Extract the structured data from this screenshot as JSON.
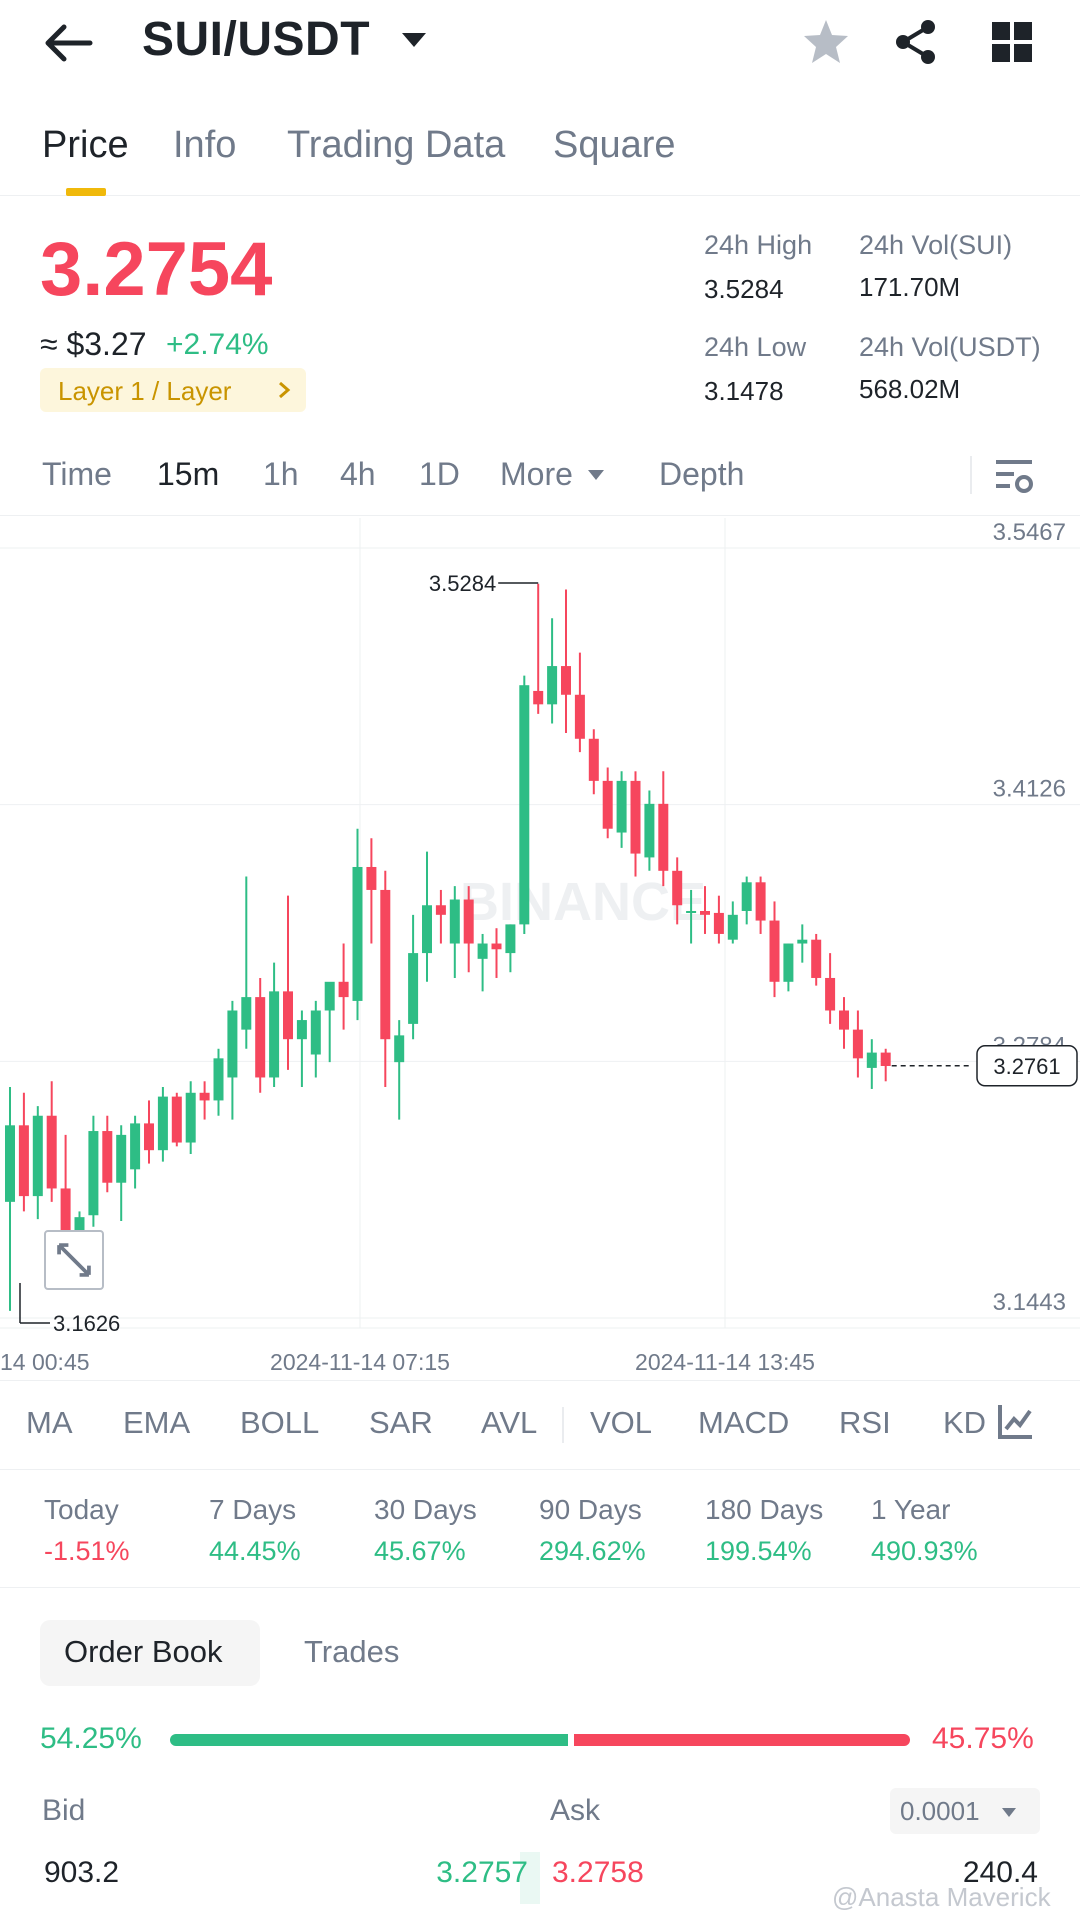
{
  "header": {
    "pair": "SUI/USDT",
    "icons": [
      "back-arrow-icon",
      "caret-down-icon",
      "star-icon",
      "share-icon",
      "grid-icon"
    ]
  },
  "tabs": [
    "Price",
    "Info",
    "Trading Data",
    "Square"
  ],
  "ticker": {
    "last_price": "3.2754",
    "usd_price": "≈ $3.27",
    "change": "+2.74%",
    "tag": "Layer 1 / Layer",
    "high_label": "24h High",
    "high_value": "3.5284",
    "low_label": "24h Low",
    "low_value": "3.1478",
    "vol_base_label": "24h Vol(SUI)",
    "vol_base_value": "171.70M",
    "vol_quote_label": "24h Vol(USDT)",
    "vol_quote_value": "568.02M"
  },
  "intervals": [
    "Time",
    "15m",
    "1h",
    "4h",
    "1D",
    "More",
    "Depth"
  ],
  "chart": {
    "y_ticks": [
      "3.5467",
      "3.4126",
      "3.2784",
      "3.1443"
    ],
    "x_ticks": [
      "14 00:45",
      "2024-11-14 07:15",
      "2024-11-14 13:45"
    ],
    "high_marker": "3.5284",
    "low_marker": "3.1626",
    "current_price": "3.2761",
    "watermark": "BINANCE"
  },
  "chart_data": {
    "type": "candlestick",
    "interval": "15m",
    "ylim": [
      3.1443,
      3.5467
    ],
    "y_ticks": [
      3.5467,
      3.4126,
      3.2784,
      3.1443
    ],
    "high": 3.5284,
    "low": 3.1626,
    "last": 3.2761,
    "candles": [
      {
        "o": 3.205,
        "h": 3.265,
        "l": 3.148,
        "c": 3.245
      },
      {
        "o": 3.245,
        "h": 3.262,
        "l": 3.2,
        "c": 3.208
      },
      {
        "o": 3.208,
        "h": 3.255,
        "l": 3.196,
        "c": 3.25
      },
      {
        "o": 3.25,
        "h": 3.268,
        "l": 3.205,
        "c": 3.212
      },
      {
        "o": 3.212,
        "h": 3.24,
        "l": 3.175,
        "c": 3.188
      },
      {
        "o": 3.18,
        "h": 3.2,
        "l": 3.162,
        "c": 3.197
      },
      {
        "o": 3.198,
        "h": 3.25,
        "l": 3.192,
        "c": 3.242
      },
      {
        "o": 3.242,
        "h": 3.25,
        "l": 3.21,
        "c": 3.215
      },
      {
        "o": 3.215,
        "h": 3.245,
        "l": 3.195,
        "c": 3.24
      },
      {
        "o": 3.222,
        "h": 3.25,
        "l": 3.212,
        "c": 3.246
      },
      {
        "o": 3.246,
        "h": 3.258,
        "l": 3.225,
        "c": 3.232
      },
      {
        "o": 3.232,
        "h": 3.265,
        "l": 3.226,
        "c": 3.26
      },
      {
        "o": 3.26,
        "h": 3.262,
        "l": 3.234,
        "c": 3.236
      },
      {
        "o": 3.236,
        "h": 3.268,
        "l": 3.23,
        "c": 3.262
      },
      {
        "o": 3.262,
        "h": 3.268,
        "l": 3.248,
        "c": 3.258
      },
      {
        "o": 3.258,
        "h": 3.285,
        "l": 3.25,
        "c": 3.28
      },
      {
        "o": 3.27,
        "h": 3.31,
        "l": 3.248,
        "c": 3.305
      },
      {
        "o": 3.295,
        "h": 3.375,
        "l": 3.285,
        "c": 3.312
      },
      {
        "o": 3.312,
        "h": 3.322,
        "l": 3.262,
        "c": 3.27
      },
      {
        "o": 3.27,
        "h": 3.33,
        "l": 3.265,
        "c": 3.315
      },
      {
        "o": 3.315,
        "h": 3.365,
        "l": 3.274,
        "c": 3.29
      },
      {
        "o": 3.29,
        "h": 3.305,
        "l": 3.265,
        "c": 3.3
      },
      {
        "o": 3.282,
        "h": 3.31,
        "l": 3.27,
        "c": 3.305
      },
      {
        "o": 3.305,
        "h": 3.318,
        "l": 3.278,
        "c": 3.32
      },
      {
        "o": 3.32,
        "h": 3.34,
        "l": 3.295,
        "c": 3.312
      },
      {
        "o": 3.31,
        "h": 3.4,
        "l": 3.3,
        "c": 3.38
      },
      {
        "o": 3.38,
        "h": 3.395,
        "l": 3.34,
        "c": 3.368
      },
      {
        "o": 3.368,
        "h": 3.378,
        "l": 3.265,
        "c": 3.29
      },
      {
        "o": 3.278,
        "h": 3.3,
        "l": 3.248,
        "c": 3.292
      },
      {
        "o": 3.298,
        "h": 3.355,
        "l": 3.29,
        "c": 3.335
      },
      {
        "o": 3.335,
        "h": 3.388,
        "l": 3.32,
        "c": 3.36
      },
      {
        "o": 3.36,
        "h": 3.368,
        "l": 3.34,
        "c": 3.355
      },
      {
        "o": 3.34,
        "h": 3.37,
        "l": 3.322,
        "c": 3.363
      },
      {
        "o": 3.363,
        "h": 3.37,
        "l": 3.325,
        "c": 3.34
      },
      {
        "o": 3.332,
        "h": 3.345,
        "l": 3.315,
        "c": 3.34
      },
      {
        "o": 3.34,
        "h": 3.348,
        "l": 3.322,
        "c": 3.337
      },
      {
        "o": 3.335,
        "h": 3.35,
        "l": 3.325,
        "c": 3.35
      },
      {
        "o": 3.35,
        "h": 3.48,
        "l": 3.345,
        "c": 3.475
      },
      {
        "o": 3.472,
        "h": 3.528,
        "l": 3.46,
        "c": 3.465
      },
      {
        "o": 3.465,
        "h": 3.51,
        "l": 3.455,
        "c": 3.485
      },
      {
        "o": 3.485,
        "h": 3.525,
        "l": 3.45,
        "c": 3.47
      },
      {
        "o": 3.47,
        "h": 3.492,
        "l": 3.44,
        "c": 3.447
      },
      {
        "o": 3.447,
        "h": 3.452,
        "l": 3.418,
        "c": 3.425
      },
      {
        "o": 3.425,
        "h": 3.432,
        "l": 3.395,
        "c": 3.4
      },
      {
        "o": 3.398,
        "h": 3.43,
        "l": 3.39,
        "c": 3.425
      },
      {
        "o": 3.425,
        "h": 3.43,
        "l": 3.375,
        "c": 3.387
      },
      {
        "o": 3.385,
        "h": 3.42,
        "l": 3.378,
        "c": 3.413
      },
      {
        "o": 3.413,
        "h": 3.43,
        "l": 3.37,
        "c": 3.378
      },
      {
        "o": 3.378,
        "h": 3.385,
        "l": 3.35,
        "c": 3.36
      },
      {
        "o": 3.357,
        "h": 3.368,
        "l": 3.34,
        "c": 3.357
      },
      {
        "o": 3.357,
        "h": 3.37,
        "l": 3.345,
        "c": 3.355
      },
      {
        "o": 3.356,
        "h": 3.365,
        "l": 3.34,
        "c": 3.345
      },
      {
        "o": 3.342,
        "h": 3.362,
        "l": 3.34,
        "c": 3.355
      },
      {
        "o": 3.357,
        "h": 3.375,
        "l": 3.35,
        "c": 3.372
      },
      {
        "o": 3.372,
        "h": 3.375,
        "l": 3.345,
        "c": 3.352
      },
      {
        "o": 3.352,
        "h": 3.362,
        "l": 3.312,
        "c": 3.32
      },
      {
        "o": 3.32,
        "h": 3.34,
        "l": 3.315,
        "c": 3.34
      },
      {
        "o": 3.34,
        "h": 3.35,
        "l": 3.33,
        "c": 3.342
      },
      {
        "o": 3.342,
        "h": 3.345,
        "l": 3.318,
        "c": 3.322
      },
      {
        "o": 3.322,
        "h": 3.335,
        "l": 3.298,
        "c": 3.305
      },
      {
        "o": 3.305,
        "h": 3.312,
        "l": 3.285,
        "c": 3.295
      },
      {
        "o": 3.295,
        "h": 3.305,
        "l": 3.27,
        "c": 3.28
      },
      {
        "o": 3.275,
        "h": 3.29,
        "l": 3.264,
        "c": 3.283
      },
      {
        "o": 3.283,
        "h": 3.285,
        "l": 3.268,
        "c": 3.276
      }
    ]
  },
  "indicators": [
    "MA",
    "EMA",
    "BOLL",
    "SAR",
    "AVL",
    "VOL",
    "MACD",
    "RSI",
    "KD"
  ],
  "performance": [
    {
      "label": "Today",
      "value": "-1.51%",
      "color": "#f6465d"
    },
    {
      "label": "7 Days",
      "value": "44.45%",
      "color": "#2ebd85"
    },
    {
      "label": "30 Days",
      "value": "45.67%",
      "color": "#2ebd85"
    },
    {
      "label": "90 Days",
      "value": "294.62%",
      "color": "#2ebd85"
    },
    {
      "label": "180 Days",
      "value": "199.54%",
      "color": "#2ebd85"
    },
    {
      "label": "1 Year",
      "value": "490.93%",
      "color": "#2ebd85"
    }
  ],
  "orderbook": {
    "tab_active": "Order Book",
    "tab_other": "Trades",
    "bid_pct": "54.25%",
    "ask_pct": "45.75%",
    "bid_ratio": 0.5425,
    "bid_head": "Bid",
    "ask_head": "Ask",
    "precision": "0.0001",
    "rows": [
      {
        "bid_qty": "903.2",
        "bid_price": "3.2757",
        "ask_price": "3.2758",
        "ask_qty": "240.4"
      }
    ]
  },
  "watermark_text": "@Anasta Maverick",
  "colors": {
    "up": "#2ebd85",
    "down": "#f6465d",
    "accent": "#f0b90b"
  }
}
